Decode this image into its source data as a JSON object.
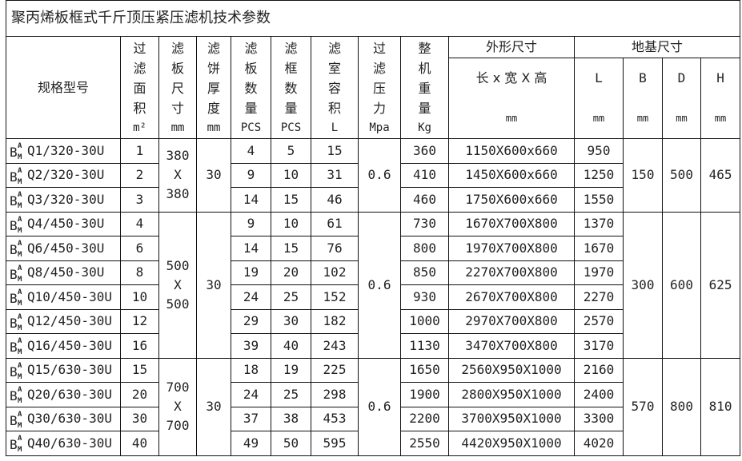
{
  "title": "聚丙烯板框式千斤顶压紧压滤机技术参数",
  "headers": {
    "model": "规格型号",
    "area": {
      "label": [
        "过",
        "滤",
        "面",
        "积"
      ],
      "unit": "m²"
    },
    "plate_size": {
      "label": [
        "滤",
        "板",
        "尺",
        "寸"
      ],
      "unit": "mm"
    },
    "cake": {
      "label": [
        "滤",
        "饼",
        "厚",
        "度"
      ],
      "unit": "mm"
    },
    "plates": {
      "label": [
        "滤",
        "板",
        "数",
        "量"
      ],
      "unit": "PCS"
    },
    "frames": {
      "label": [
        "滤",
        "框",
        "数",
        "量"
      ],
      "unit": "PCS"
    },
    "volume": {
      "label": [
        "滤",
        "室",
        "容",
        "积"
      ],
      "unit": "L"
    },
    "pressure": {
      "label": [
        "过",
        "滤",
        "压",
        "力"
      ],
      "unit": "Mpa"
    },
    "weight": {
      "label": [
        "整",
        "机",
        "重",
        "量"
      ],
      "unit": "Kg"
    },
    "outline": {
      "group": "外形尺寸",
      "label": "长 x 宽 X 高",
      "unit": "mm"
    },
    "foundation": {
      "group": "地基尺寸",
      "cols": [
        {
          "label": "L",
          "unit": "mm"
        },
        {
          "label": "B",
          "unit": "mm"
        },
        {
          "label": "D",
          "unit": "mm"
        },
        {
          "label": "H",
          "unit": "mm"
        }
      ]
    }
  },
  "model_prefix": {
    "base": "B",
    "sup": "A",
    "sub": "M"
  },
  "groups": [
    {
      "plate_size": [
        "380",
        "X",
        "380"
      ],
      "cake": "30",
      "pressure": "0.6",
      "B": "150",
      "D": "500",
      "H": "465",
      "rows": [
        {
          "model": "Q1/320-30U",
          "area": "1",
          "plates": "4",
          "frames": "5",
          "volume": "15",
          "weight": "360",
          "outline": "1150X600x660",
          "L": "950"
        },
        {
          "model": "Q2/320-30U",
          "area": "2",
          "plates": "9",
          "frames": "10",
          "volume": "31",
          "weight": "410",
          "outline": "1450X600x660",
          "L": "1250"
        },
        {
          "model": "Q3/320-30U",
          "area": "3",
          "plates": "14",
          "frames": "15",
          "volume": "46",
          "weight": "460",
          "outline": "1750X600x660",
          "L": "1550"
        }
      ]
    },
    {
      "plate_size": [
        "500",
        "X",
        "500"
      ],
      "cake": "30",
      "pressure": "0.6",
      "B": "300",
      "D": "600",
      "H": "625",
      "rows": [
        {
          "model": "Q4/450-30U",
          "area": "4",
          "plates": "9",
          "frames": "10",
          "volume": "61",
          "weight": "730",
          "outline": "1670X700X800",
          "L": "1370"
        },
        {
          "model": "Q6/450-30U",
          "area": "6",
          "plates": "14",
          "frames": "15",
          "volume": "76",
          "weight": "800",
          "outline": "1970X700X800",
          "L": "1670"
        },
        {
          "model": "Q8/450-30U",
          "area": "8",
          "plates": "19",
          "frames": "20",
          "volume": "102",
          "weight": "850",
          "outline": "2270X700X800",
          "L": "1970"
        },
        {
          "model": "Q10/450-30U",
          "area": "10",
          "plates": "24",
          "frames": "25",
          "volume": "152",
          "weight": "930",
          "outline": "2670X700X800",
          "L": "2270"
        },
        {
          "model": "Q12/450-30U",
          "area": "12",
          "plates": "29",
          "frames": "30",
          "volume": "182",
          "weight": "1000",
          "outline": "2970X700X800",
          "L": "2570"
        },
        {
          "model": "Q16/450-30U",
          "area": "16",
          "plates": "39",
          "frames": "40",
          "volume": "243",
          "weight": "1130",
          "outline": "3470X700X800",
          "L": "3170"
        }
      ]
    },
    {
      "plate_size": [
        "700",
        "X",
        "700"
      ],
      "cake": "30",
      "pressure": "0.6",
      "B": "570",
      "D": "800",
      "H": "810",
      "rows": [
        {
          "model": "Q15/630-30U",
          "area": "15",
          "plates": "18",
          "frames": "19",
          "volume": "225",
          "weight": "1650",
          "outline": "2560X950X1000",
          "L": "2160"
        },
        {
          "model": "Q20/630-30U",
          "area": "20",
          "plates": "24",
          "frames": "25",
          "volume": "298",
          "weight": "1900",
          "outline": "2800X950X1000",
          "L": "2400"
        },
        {
          "model": "Q30/630-30U",
          "area": "30",
          "plates": "37",
          "frames": "38",
          "volume": "453",
          "weight": "2200",
          "outline": "3700X950X1000",
          "L": "3300"
        },
        {
          "model": "Q40/630-30U",
          "area": "40",
          "plates": "49",
          "frames": "50",
          "volume": "595",
          "weight": "2550",
          "outline": "4420X950X1000",
          "L": "4020"
        }
      ]
    }
  ]
}
